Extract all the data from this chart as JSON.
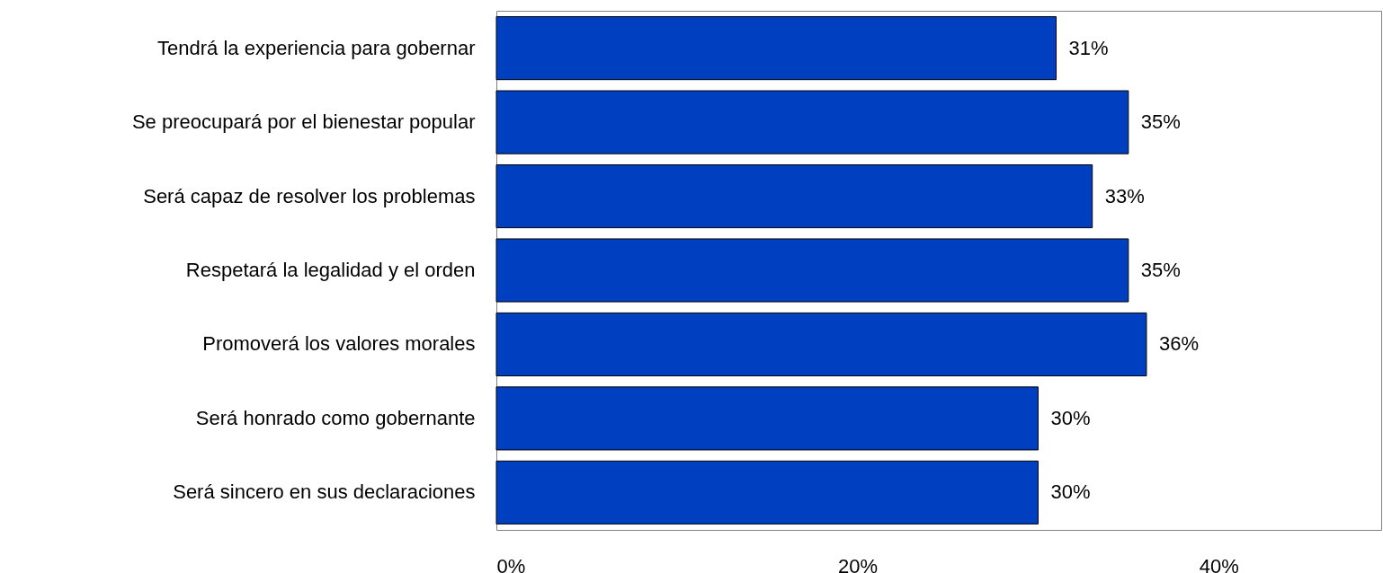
{
  "chart_data": {
    "type": "bar",
    "orientation": "horizontal",
    "categories": [
      "Tendrá la experiencia para gobernar",
      "Se preocupará por el bienestar popular",
      "Será capaz de resolver los problemas",
      "Respetará la legalidad y el orden",
      "Promoverá los valores morales",
      "Será honrado como gobernante",
      "Será sincero en sus declaraciones"
    ],
    "values": [
      31,
      35,
      33,
      35,
      36,
      30,
      30
    ],
    "value_labels": [
      "31%",
      "35%",
      "33%",
      "35%",
      "36%",
      "30%",
      "30%"
    ],
    "color": "#0040c0",
    "xlim": [
      0,
      49
    ],
    "xticks": [
      {
        "value": 0,
        "label": "0%"
      },
      {
        "value": 20,
        "label": "20%"
      },
      {
        "value": 40,
        "label": "40%"
      }
    ]
  }
}
